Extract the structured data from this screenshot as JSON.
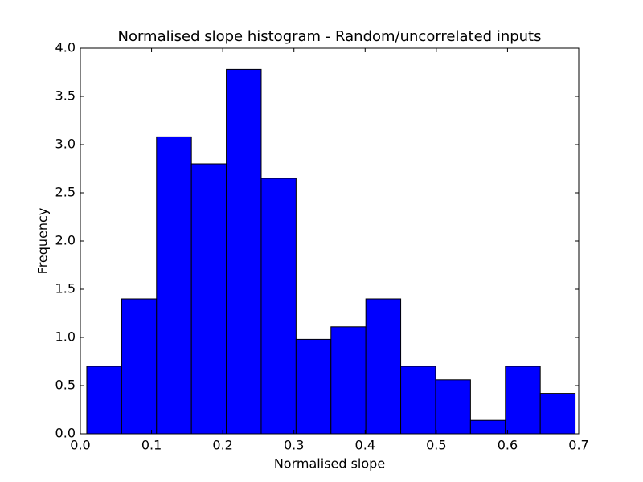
{
  "chart_data": {
    "type": "histogram",
    "title": "Normalised slope histogram - Random/uncorrelated inputs",
    "x_label": "Normalised slope",
    "y_label": "Frequency",
    "bins": [
      0.009,
      0.058,
      0.107,
      0.156,
      0.205,
      0.254,
      0.303,
      0.352,
      0.401,
      0.45,
      0.499,
      0.548,
      0.597,
      0.646,
      0.695
    ],
    "values": [
      0.7,
      1.4,
      3.08,
      2.8,
      3.78,
      2.65,
      0.98,
      1.11,
      1.4,
      0.7,
      0.56,
      0.14,
      0.7,
      0.42
    ],
    "color": "#0000ff",
    "xlim": [
      0,
      0.7
    ],
    "xticks": [
      {
        "value": 0,
        "label": "0.0"
      },
      0.1,
      0.2,
      0.3,
      0.4,
      0.5,
      0.6,
      0.7
    ],
    "ylim": [
      0,
      4
    ],
    "yticks": [
      {
        "value": 0,
        "label": "0.0"
      },
      0.5,
      {
        "value": 1,
        "label": "1.0"
      },
      1.5,
      {
        "value": 2,
        "label": "2.0"
      },
      2.5,
      {
        "value": 3,
        "label": "3.0"
      },
      3.5,
      {
        "value": 4,
        "label": "4.0"
      }
    ]
  }
}
